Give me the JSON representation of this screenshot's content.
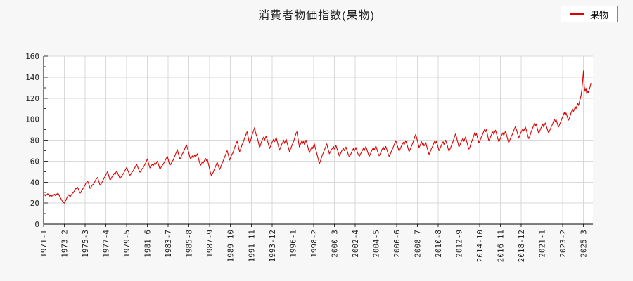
{
  "page": {
    "background": "#f7f7f7"
  },
  "header": {
    "title": "消費者物価指数(果物)"
  },
  "legend": {
    "items": [
      {
        "label": "果物",
        "color": "#dd0000"
      }
    ]
  },
  "chart_data": {
    "type": "line",
    "title": "消費者物価指数(果物)",
    "x_frequency": "monthly",
    "x_start": "1971-1",
    "x_end": "2025-12",
    "xtick_interval_months": 25,
    "xtick_labels": [
      "1971-1",
      "1973-2",
      "1975-3",
      "1977-4",
      "1979-5",
      "1981-6",
      "1983-7",
      "1985-8",
      "1987-9",
      "1989-10",
      "1991-11",
      "1993-12",
      "1996-1",
      "1998-2",
      "2000-3",
      "2002-4",
      "2004-5",
      "2006-6",
      "2008-7",
      "2010-8",
      "2012-9",
      "2014-10",
      "2016-11",
      "2018-12",
      "2021-1",
      "2023-2",
      "2025-3"
    ],
    "yticks": [
      0,
      20,
      40,
      60,
      80,
      100,
      120,
      140,
      160
    ],
    "ylim": [
      0,
      160
    ],
    "grid": true,
    "legend_position": "top-right",
    "series": [
      {
        "name": "果物",
        "color": "#dd0000",
        "values": [
          27.5,
          28.2,
          27.0,
          28.5,
          27.8,
          29.0,
          28.0,
          26.5,
          27.8,
          26.0,
          27.2,
          26.8,
          27.5,
          28.5,
          27.2,
          29.0,
          28.0,
          29.5,
          28.5,
          27.0,
          25.5,
          24.0,
          22.5,
          21.5,
          20.5,
          20.0,
          21.5,
          23.0,
          25.0,
          26.5,
          28.0,
          27.0,
          26.0,
          27.5,
          28.5,
          29.5,
          30.0,
          31.5,
          33.0,
          34.5,
          33.5,
          35.0,
          33.0,
          31.0,
          29.5,
          30.5,
          32.0,
          33.5,
          34.5,
          36.0,
          37.5,
          39.0,
          40.0,
          41.0,
          39.0,
          36.5,
          34.0,
          35.0,
          36.5,
          37.5,
          38.0,
          39.5,
          41.0,
          42.5,
          43.5,
          44.5,
          42.0,
          39.5,
          37.0,
          38.0,
          39.5,
          41.0,
          42.5,
          44.0,
          45.5,
          47.0,
          48.5,
          50.0,
          47.5,
          44.5,
          42.0,
          43.0,
          44.5,
          46.0,
          47.0,
          48.5,
          47.0,
          49.0,
          50.5,
          49.0,
          47.0,
          45.0,
          43.5,
          44.5,
          46.0,
          47.0,
          48.0,
          49.5,
          51.0,
          52.5,
          54.0,
          52.0,
          50.0,
          48.0,
          46.5,
          47.5,
          49.0,
          50.0,
          51.0,
          52.5,
          54.0,
          55.5,
          57.0,
          55.0,
          53.0,
          51.0,
          49.5,
          50.5,
          52.0,
          53.0,
          54.0,
          55.5,
          57.0,
          58.5,
          60.5,
          62.0,
          59.0,
          56.0,
          53.5,
          54.5,
          56.0,
          57.0,
          55.5,
          57.0,
          58.5,
          57.0,
          58.5,
          60.0,
          57.5,
          55.0,
          52.5,
          53.5,
          55.0,
          56.0,
          57.0,
          58.5,
          60.0,
          61.5,
          63.0,
          64.5,
          61.5,
          58.5,
          56.0,
          57.0,
          58.5,
          60.0,
          61.0,
          63.0,
          65.0,
          67.0,
          69.0,
          71.0,
          68.0,
          65.0,
          62.0,
          63.0,
          65.0,
          67.0,
          68.0,
          70.0,
          72.0,
          74.0,
          75.5,
          73.0,
          70.0,
          67.0,
          64.0,
          62.0,
          63.5,
          65.0,
          63.0,
          64.5,
          66.0,
          64.0,
          65.5,
          67.0,
          64.0,
          61.0,
          58.0,
          56.0,
          57.5,
          59.0,
          58.0,
          59.5,
          61.0,
          62.5,
          60.5,
          62.0,
          59.0,
          55.5,
          52.0,
          48.5,
          46.0,
          47.5,
          49.0,
          51.0,
          53.0,
          55.0,
          57.0,
          59.0,
          56.5,
          54.0,
          52.0,
          54.0,
          56.0,
          58.0,
          60.0,
          62.0,
          64.0,
          66.0,
          68.0,
          70.0,
          67.0,
          64.0,
          61.0,
          63.0,
          65.0,
          67.0,
          68.0,
          70.5,
          73.0,
          75.0,
          77.0,
          79.0,
          76.0,
          72.0,
          69.0,
          71.0,
          73.5,
          76.0,
          77.0,
          79.5,
          82.0,
          84.0,
          86.0,
          88.0,
          84.0,
          80.0,
          77.0,
          79.0,
          82.0,
          85.0,
          87.0,
          89.5,
          92.0,
          88.0,
          85.0,
          83.0,
          80.0,
          76.5,
          73.0,
          75.0,
          77.5,
          80.0,
          81.5,
          83.0,
          80.0,
          82.0,
          84.0,
          81.0,
          78.0,
          75.0,
          72.0,
          74.0,
          76.0,
          78.0,
          79.5,
          81.0,
          78.5,
          80.5,
          82.5,
          79.5,
          76.5,
          73.5,
          70.5,
          72.5,
          74.5,
          76.5,
          78.0,
          80.0,
          77.0,
          79.0,
          81.0,
          78.0,
          75.0,
          72.0,
          69.0,
          71.0,
          73.0,
          75.0,
          77.0,
          79.0,
          81.5,
          84.0,
          86.5,
          88.0,
          83.0,
          78.0,
          73.5,
          75.5,
          77.5,
          79.5,
          77.0,
          79.0,
          76.0,
          78.0,
          80.0,
          77.0,
          74.0,
          71.0,
          68.0,
          70.0,
          72.0,
          74.0,
          72.0,
          74.5,
          76.5,
          73.0,
          70.0,
          67.0,
          64.0,
          61.0,
          57.5,
          59.5,
          62.0,
          64.5,
          66.5,
          68.5,
          70.5,
          72.5,
          74.5,
          76.5,
          73.0,
          70.0,
          67.0,
          68.5,
          70.0,
          71.5,
          72.5,
          74.0,
          71.5,
          73.0,
          75.0,
          72.5,
          70.0,
          67.5,
          65.0,
          66.5,
          68.0,
          70.0,
          71.0,
          72.5,
          70.0,
          71.5,
          73.5,
          71.0,
          68.5,
          66.0,
          64.0,
          65.5,
          67.0,
          69.0,
          70.5,
          72.0,
          69.5,
          71.0,
          73.0,
          70.5,
          68.0,
          66.0,
          64.5,
          66.0,
          67.5,
          69.0,
          70.5,
          72.5,
          70.0,
          72.0,
          74.0,
          71.5,
          69.0,
          66.5,
          64.5,
          66.0,
          68.0,
          70.0,
          71.5,
          73.0,
          70.5,
          72.5,
          74.5,
          72.0,
          69.5,
          67.0,
          65.0,
          66.5,
          68.5,
          70.5,
          72.0,
          73.5,
          71.0,
          72.5,
          74.0,
          71.5,
          69.0,
          66.5,
          64.5,
          66.0,
          68.0,
          70.0,
          71.5,
          73.5,
          75.5,
          77.5,
          79.5,
          77.0,
          74.5,
          72.0,
          69.5,
          71.0,
          73.0,
          75.0,
          76.5,
          78.0,
          75.5,
          77.5,
          79.5,
          77.0,
          74.5,
          71.5,
          69.0,
          70.5,
          72.5,
          74.5,
          76.5,
          78.5,
          81.0,
          83.5,
          85.5,
          82.5,
          79.5,
          76.5,
          73.0,
          74.5,
          76.5,
          78.5,
          76.0,
          77.5,
          74.5,
          76.0,
          78.0,
          75.0,
          72.0,
          69.0,
          66.5,
          68.0,
          70.0,
          72.0,
          73.5,
          75.5,
          77.5,
          79.5,
          77.0,
          79.0,
          76.0,
          73.0,
          70.0,
          71.5,
          73.5,
          75.5,
          77.0,
          78.5,
          76.0,
          78.0,
          80.0,
          77.5,
          75.0,
          72.0,
          69.5,
          71.0,
          73.0,
          75.0,
          77.0,
          79.0,
          81.5,
          84.0,
          86.0,
          83.0,
          80.0,
          77.0,
          73.5,
          75.0,
          77.0,
          79.0,
          80.5,
          82.0,
          79.0,
          81.0,
          83.0,
          80.0,
          77.0,
          74.0,
          71.5,
          73.0,
          75.5,
          78.0,
          80.0,
          82.0,
          84.5,
          87.0,
          84.5,
          86.5,
          83.5,
          80.5,
          77.5,
          79.0,
          81.0,
          83.0,
          84.5,
          86.5,
          88.5,
          90.5,
          88.0,
          90.0,
          86.5,
          83.0,
          79.5,
          81.0,
          83.0,
          85.0,
          86.5,
          88.0,
          85.5,
          87.5,
          89.5,
          87.0,
          84.0,
          81.0,
          78.5,
          80.0,
          82.0,
          84.0,
          85.5,
          87.0,
          84.5,
          86.5,
          88.5,
          86.0,
          83.0,
          80.0,
          77.5,
          79.5,
          81.5,
          83.5,
          85.0,
          87.0,
          89.0,
          91.0,
          93.0,
          90.5,
          88.0,
          85.0,
          82.0,
          84.0,
          86.0,
          88.0,
          89.5,
          91.0,
          88.5,
          90.5,
          92.5,
          90.0,
          87.0,
          84.0,
          81.5,
          83.0,
          85.5,
          88.0,
          90.0,
          92.0,
          94.0,
          96.0,
          93.5,
          95.5,
          92.5,
          89.5,
          86.5,
          88.0,
          90.0,
          92.0,
          93.5,
          95.5,
          92.5,
          94.5,
          96.5,
          94.0,
          91.5,
          89.0,
          87.0,
          88.5,
          90.5,
          92.5,
          94.0,
          96.0,
          98.0,
          100.0,
          97.5,
          99.5,
          97.0,
          94.5,
          92.5,
          94.5,
          96.5,
          98.5,
          100.5,
          102.5,
          104.5,
          106.5,
          104.0,
          106.0,
          103.5,
          101.0,
          99.0,
          101.0,
          103.5,
          106.0,
          108.0,
          110.0,
          107.5,
          109.5,
          112.0,
          110.0,
          112.5,
          115.0,
          113.0,
          116.0,
          119.0,
          122.5,
          128.0,
          137.0,
          146.0,
          131.0,
          126.5,
          129.5,
          124.0,
          127.0,
          125.0,
          128.5,
          131.0,
          134.5
        ]
      }
    ]
  }
}
